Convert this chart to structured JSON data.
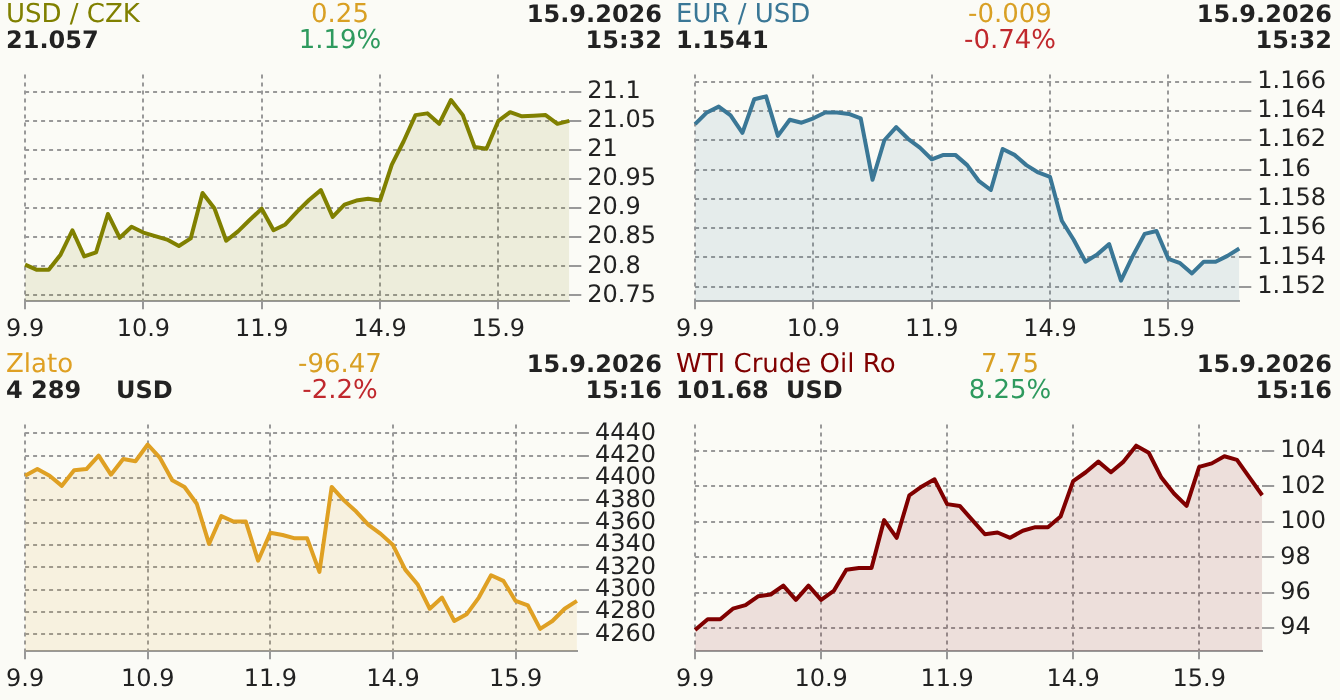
{
  "chart_data": [
    {
      "type": "area",
      "title": "USD / CZK",
      "annotations": [
        "21.057",
        "0.25",
        "1.19%",
        "15.9.2026",
        "15:32"
      ],
      "color": "#808000",
      "categories": [
        "9.9",
        null,
        null,
        null,
        null,
        null,
        null,
        null,
        null,
        null,
        "10.9",
        null,
        null,
        null,
        null,
        null,
        null,
        null,
        null,
        null,
        "11.9",
        null,
        null,
        null,
        null,
        null,
        null,
        null,
        null,
        null,
        "14.9",
        null,
        null,
        null,
        null,
        null,
        null,
        null,
        null,
        null,
        "15.9",
        null,
        null,
        null,
        null,
        null,
        null
      ],
      "values": [
        20.803,
        20.794,
        20.794,
        20.82,
        20.862,
        20.817,
        20.824,
        20.89,
        20.849,
        20.868,
        20.858,
        20.852,
        20.846,
        20.835,
        20.848,
        20.926,
        20.9,
        20.844,
        20.86,
        20.88,
        20.899,
        20.862,
        20.872,
        20.894,
        20.914,
        20.931,
        20.885,
        20.906,
        20.913,
        20.916,
        20.913,
        20.975,
        21.015,
        21.06,
        21.063,
        21.045,
        21.086,
        21.06,
        21.005,
        21.002,
        21.05,
        21.065,
        21.058,
        21.059,
        21.06,
        21.045,
        21.05
      ],
      "ylim": [
        20.74,
        21.13
      ],
      "yticks": [
        20.75,
        20.8,
        20.85,
        20.9,
        20.95,
        21,
        21.05,
        21.1
      ],
      "grid": true
    },
    {
      "type": "area",
      "title": "EUR / USD",
      "annotations": [
        "1.1541",
        "-0.009",
        "-0.74%",
        "15.9.2026",
        "15:32"
      ],
      "color": "#3a7796",
      "categories": [
        "9.9",
        null,
        null,
        null,
        null,
        null,
        null,
        null,
        null,
        null,
        "10.9",
        null,
        null,
        null,
        null,
        null,
        null,
        null,
        null,
        null,
        "11.9",
        null,
        null,
        null,
        null,
        null,
        null,
        null,
        null,
        null,
        "14.9",
        null,
        null,
        null,
        null,
        null,
        null,
        null,
        null,
        null,
        "15.9",
        null,
        null,
        null,
        null,
        null,
        null
      ],
      "values": [
        1.1631,
        1.1639,
        1.1643,
        1.1637,
        1.1625,
        1.1648,
        1.165,
        1.1623,
        1.1634,
        1.1632,
        1.1635,
        1.1639,
        1.1639,
        1.1638,
        1.1635,
        1.1593,
        1.162,
        1.1629,
        1.1621,
        1.1615,
        1.1607,
        1.161,
        1.161,
        1.1603,
        1.1592,
        1.1586,
        1.1614,
        1.161,
        1.1603,
        1.1598,
        1.1595,
        1.1565,
        1.1552,
        1.1537,
        1.1542,
        1.1549,
        1.1524,
        1.1541,
        1.1556,
        1.1558,
        1.1539,
        1.1536,
        1.1529,
        1.1537,
        1.1537,
        1.1541,
        1.1546
      ],
      "ylim": [
        1.151,
        1.1665
      ],
      "yticks": [
        1.152,
        1.154,
        1.156,
        1.158,
        1.16,
        1.162,
        1.164,
        1.166
      ],
      "grid": true
    },
    {
      "type": "area",
      "title": "Zlato",
      "annotations": [
        "4 289",
        "USD",
        "-96.47",
        "-2.2%",
        "15.9.2026",
        "15:16"
      ],
      "color": "#dfa023",
      "categories": [
        "9.9",
        null,
        null,
        null,
        null,
        null,
        null,
        null,
        null,
        null,
        "10.9",
        null,
        null,
        null,
        null,
        null,
        null,
        null,
        null,
        null,
        "11.9",
        null,
        null,
        null,
        null,
        null,
        null,
        null,
        null,
        null,
        "14.9",
        null,
        null,
        null,
        null,
        null,
        null,
        null,
        null,
        null,
        "15.9",
        null,
        null,
        null,
        null,
        null
      ],
      "values": [
        4402,
        4408,
        4402,
        4393,
        4407,
        4408,
        4420,
        4403,
        4417,
        4415,
        4430,
        4418,
        4398,
        4392,
        4377,
        4341,
        4366,
        4361,
        4361,
        4326,
        4351,
        4349,
        4346,
        4346,
        4316,
        4392,
        4380,
        4370,
        4358,
        4350,
        4340,
        4318,
        4305,
        4283,
        4293,
        4272,
        4278,
        4293,
        4313,
        4308,
        4290,
        4286,
        4265,
        4272,
        4283,
        4290
      ],
      "ylim": [
        4245,
        4448
      ],
      "yticks": [
        4260,
        4280,
        4300,
        4320,
        4340,
        4360,
        4380,
        4400,
        4420,
        4440
      ],
      "grid": true
    },
    {
      "type": "area",
      "title": "WTI Crude Oil Ro",
      "annotations": [
        "101.68",
        "USD",
        "7.75",
        "8.25%",
        "15.9.2026",
        "15:16"
      ],
      "color": "#800000",
      "categories": [
        "9.9",
        null,
        null,
        null,
        null,
        null,
        null,
        null,
        null,
        null,
        "10.9",
        null,
        null,
        null,
        null,
        null,
        null,
        null,
        null,
        null,
        "11.9",
        null,
        null,
        null,
        null,
        null,
        null,
        null,
        null,
        null,
        "14.9",
        null,
        null,
        null,
        null,
        null,
        null,
        null,
        null,
        null,
        "15.9",
        null,
        null,
        null,
        null,
        null
      ],
      "values": [
        93.9,
        94.5,
        94.5,
        95.1,
        95.3,
        95.8,
        95.9,
        96.4,
        95.6,
        96.4,
        95.6,
        96.1,
        97.3,
        97.4,
        97.4,
        100.1,
        99.1,
        101.5,
        102,
        102.4,
        101,
        100.9,
        100.1,
        99.3,
        99.4,
        99.1,
        99.5,
        99.7,
        99.7,
        100.3,
        102.3,
        102.8,
        103.4,
        102.8,
        103.4,
        104.3,
        103.9,
        102.5,
        101.6,
        100.9,
        103.1,
        103.3,
        103.7,
        103.5,
        102.5,
        101.5
      ],
      "ylim": [
        92.7,
        105.5
      ],
      "yticks": [
        94,
        96,
        98,
        100,
        102,
        104
      ],
      "grid": true
    }
  ]
}
